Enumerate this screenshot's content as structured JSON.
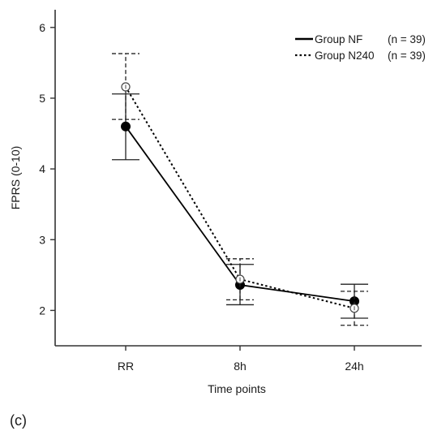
{
  "chart_data": {
    "type": "line",
    "title": "",
    "xlabel": "Time points",
    "ylabel": "FPRS (0-10)",
    "categories": [
      "RR",
      "8h",
      "24h"
    ],
    "ylim": [
      1.5,
      6.25
    ],
    "yticks": [
      2,
      3,
      4,
      5,
      6
    ],
    "grid": false,
    "legend_position": "top-right",
    "series": [
      {
        "name": "Group NF",
        "n_label": "(n = 39)",
        "line_style": "solid",
        "marker": "filled-circle",
        "color": "#000000",
        "values": [
          4.6,
          2.36,
          2.13
        ],
        "error_low": [
          4.13,
          2.08,
          1.89
        ],
        "error_high": [
          5.06,
          2.65,
          2.37
        ]
      },
      {
        "name": "Group N240",
        "n_label": "(n = 39)",
        "line_style": "dotted",
        "marker": "open-circle",
        "color": "#000000",
        "values": [
          5.16,
          2.44,
          2.03
        ],
        "error_low": [
          4.7,
          2.15,
          1.79
        ],
        "error_high": [
          5.63,
          2.73,
          2.27
        ]
      }
    ]
  },
  "panel_label": "(c)"
}
